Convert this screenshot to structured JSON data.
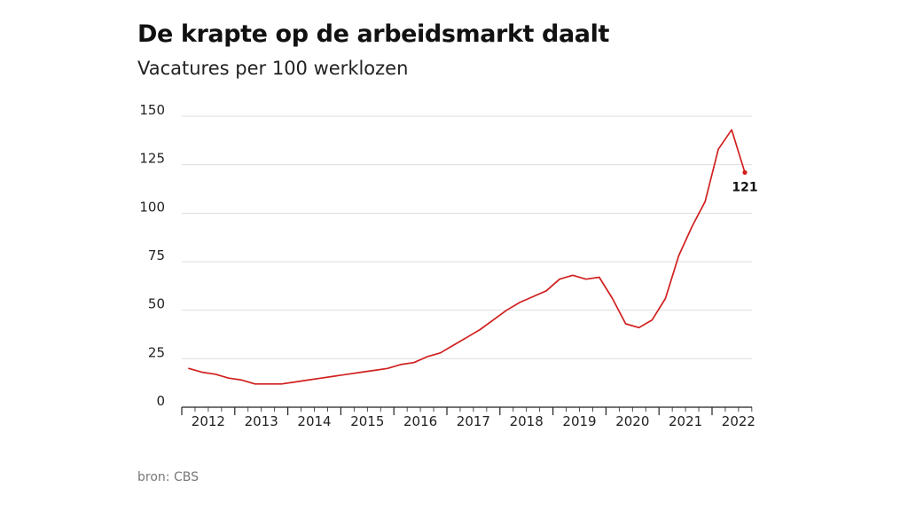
{
  "header": {
    "title": "De krapte op de arbeidsmarkt daalt",
    "subtitle": "Vacatures per 100 werklozen"
  },
  "footer": {
    "source": "bron: CBS"
  },
  "colors": {
    "line": "#d0201f",
    "grid": "#dddddd",
    "axis": "#222222"
  },
  "chart_data": {
    "type": "line",
    "title": "De krapte op de arbeidsmarkt daalt",
    "subtitle": "Vacatures per 100 werklozen",
    "xlabel": "",
    "ylabel": "",
    "ylim": [
      0,
      150
    ],
    "y_ticks": [
      0,
      25,
      50,
      75,
      100,
      125,
      150
    ],
    "x_tick_labels": [
      "2012",
      "2013",
      "2014",
      "2015",
      "2016",
      "2017",
      "2018",
      "2019",
      "2020",
      "2021",
      "2022"
    ],
    "grid": true,
    "series": [
      {
        "quarters": [
          "2012-Q1",
          "2012-Q2",
          "2012-Q3",
          "2012-Q4",
          "2013-Q1",
          "2013-Q2",
          "2013-Q3",
          "2013-Q4",
          "2014-Q1",
          "2014-Q2",
          "2014-Q3",
          "2014-Q4",
          "2015-Q1",
          "2015-Q2",
          "2015-Q3",
          "2015-Q4",
          "2016-Q1",
          "2016-Q2",
          "2016-Q3",
          "2016-Q4",
          "2017-Q1",
          "2017-Q2",
          "2017-Q3",
          "2017-Q4",
          "2018-Q1",
          "2018-Q2",
          "2018-Q3",
          "2018-Q4",
          "2019-Q1",
          "2019-Q2",
          "2019-Q3",
          "2019-Q4",
          "2020-Q1",
          "2020-Q2",
          "2020-Q3",
          "2020-Q4",
          "2021-Q1",
          "2021-Q2",
          "2021-Q3",
          "2021-Q4",
          "2022-Q1",
          "2022-Q2",
          "2022-Q3"
        ],
        "values": [
          20,
          18,
          17,
          15,
          14,
          12,
          12,
          12,
          13,
          14,
          15,
          16,
          17,
          18,
          19,
          20,
          22,
          23,
          26,
          28,
          32,
          36,
          40,
          45,
          50,
          54,
          57,
          60,
          66,
          68,
          66,
          67,
          56,
          43,
          41,
          45,
          56,
          78,
          93,
          106,
          133,
          143,
          121
        ]
      }
    ],
    "annotation": {
      "text": "121",
      "point": "2022-Q3",
      "value": 121
    }
  }
}
